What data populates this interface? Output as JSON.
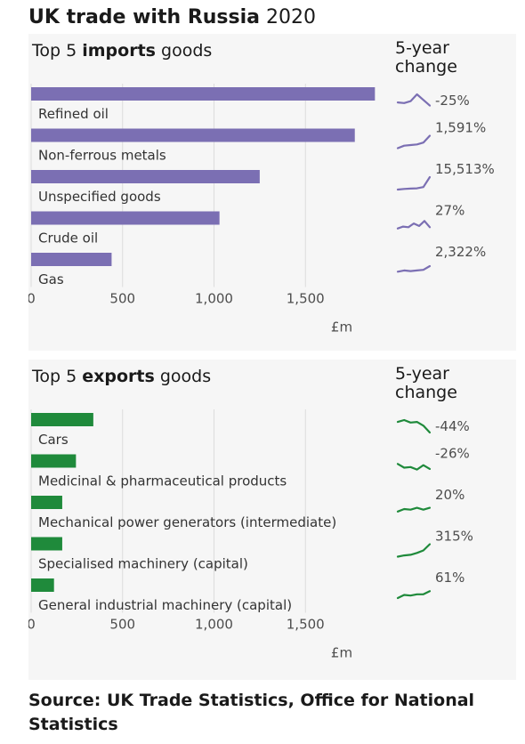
{
  "title": {
    "bold": "UK trade with Russia",
    "year": "2020"
  },
  "imports": {
    "title_pre": "Top 5 ",
    "title_bold": "imports",
    "title_post": " goods",
    "change_label_line1": "5-year",
    "change_label_line2": "change"
  },
  "exports": {
    "title_pre": "Top 5 ",
    "title_bold": "exports",
    "title_post": " goods",
    "change_label_line1": "5-year",
    "change_label_line2": "change"
  },
  "source": "Source: UK Trade Statistics, Office for National Statistics",
  "chart_data": [
    {
      "type": "bar",
      "orientation": "horizontal",
      "categories": [
        "Refined oil",
        "Non-ferrous metals",
        "Unspecified goods",
        "Crude oil",
        "Gas"
      ],
      "values": [
        1880,
        1770,
        1250,
        1030,
        440
      ],
      "xlabel": "£m",
      "xlim": [
        0,
        1880
      ],
      "xticks": [
        0,
        500,
        1000,
        1500
      ],
      "xtick_labels": [
        "0",
        "500",
        "1,000",
        "1,500"
      ],
      "color": "#7b6fb3",
      "five_year_change": [
        "-25%",
        "1,591%",
        "15,513%",
        "27%",
        "2,322%"
      ],
      "sparklines": [
        [
          0.35,
          0.3,
          0.45,
          1.0,
          0.55,
          0.1
        ],
        [
          0.0,
          0.2,
          0.25,
          0.3,
          0.45,
          1.0
        ],
        [
          0.0,
          0.05,
          0.08,
          0.1,
          0.2,
          1.0
        ],
        [
          0.2,
          0.35,
          0.3,
          0.6,
          0.4,
          0.8,
          0.3
        ],
        [
          0.05,
          0.15,
          0.1,
          0.15,
          0.2,
          0.5
        ]
      ]
    },
    {
      "type": "bar",
      "orientation": "horizontal",
      "categories": [
        "Cars",
        "Medicinal & pharmaceutical products",
        "Mechanical power generators (intermediate)",
        "Specialised machinery (capital)",
        "General industrial machinery (capital)"
      ],
      "values": [
        340,
        245,
        170,
        170,
        125
      ],
      "xlabel": "£m",
      "xlim": [
        0,
        1880
      ],
      "xticks": [
        0,
        500,
        1000,
        1500
      ],
      "xtick_labels": [
        "0",
        "500",
        "1,000",
        "1,500"
      ],
      "color": "#1f8a3b",
      "five_year_change": [
        "-44%",
        "-26%",
        "20%",
        "315%",
        "61%"
      ],
      "sparklines": [
        [
          0.85,
          1.0,
          0.8,
          0.85,
          0.55,
          0.0
        ],
        [
          0.8,
          0.5,
          0.55,
          0.35,
          0.7,
          0.4
        ],
        [
          0.3,
          0.5,
          0.45,
          0.6,
          0.45,
          0.6
        ],
        [
          0.0,
          0.1,
          0.15,
          0.3,
          0.5,
          1.0
        ],
        [
          0.0,
          0.25,
          0.2,
          0.3,
          0.3,
          0.55
        ]
      ]
    }
  ]
}
